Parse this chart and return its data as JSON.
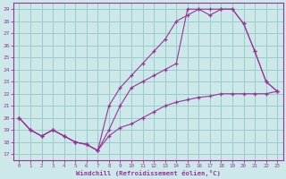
{
  "xlabel": "Windchill (Refroidissement éolien,°C)",
  "background_color": "#cce8e8",
  "grid_color": "#99cccc",
  "line_color": "#993399",
  "spine_color": "#993399",
  "xlim": [
    -0.5,
    23.5
  ],
  "ylim": [
    16.5,
    29.5
  ],
  "yticks": [
    17,
    18,
    19,
    20,
    21,
    22,
    23,
    24,
    25,
    26,
    27,
    28,
    29
  ],
  "xticks": [
    0,
    1,
    2,
    3,
    4,
    5,
    6,
    7,
    8,
    9,
    10,
    11,
    12,
    13,
    14,
    15,
    16,
    17,
    18,
    19,
    20,
    21,
    22,
    23
  ],
  "series": [
    {
      "x": [
        0,
        1,
        2,
        3,
        4,
        5,
        6,
        7,
        8,
        9,
        10,
        11,
        12,
        13,
        14,
        15,
        16,
        17,
        18,
        19,
        20,
        21,
        22,
        23
      ],
      "y": [
        20,
        19,
        18.5,
        19,
        18.5,
        18,
        17.8,
        17.3,
        18.5,
        19.2,
        19.5,
        20,
        20.5,
        21,
        21.3,
        21.5,
        21.7,
        21.8,
        22,
        22,
        22,
        22,
        22,
        22.2
      ]
    },
    {
      "x": [
        0,
        1,
        2,
        3,
        4,
        5,
        6,
        7,
        8,
        9,
        10,
        11,
        12,
        13,
        14,
        15,
        16,
        17,
        18,
        19,
        20,
        21,
        22,
        23
      ],
      "y": [
        20,
        19,
        18.5,
        19,
        18.5,
        18,
        17.8,
        17.3,
        19,
        21,
        22.5,
        23,
        23.5,
        24,
        24.5,
        29,
        29,
        29,
        29,
        29,
        27.8,
        25.5,
        23,
        22.2
      ]
    },
    {
      "x": [
        0,
        1,
        2,
        3,
        4,
        5,
        6,
        7,
        8,
        9,
        10,
        11,
        12,
        13,
        14,
        15,
        16,
        17,
        18,
        19,
        20,
        21,
        22,
        23
      ],
      "y": [
        20,
        19,
        18.5,
        19,
        18.5,
        18,
        17.8,
        17.3,
        21,
        22.5,
        23.5,
        24.5,
        25.5,
        26.5,
        28,
        28.5,
        29,
        28.5,
        29,
        29,
        27.8,
        25.5,
        23,
        22.2
      ]
    }
  ]
}
